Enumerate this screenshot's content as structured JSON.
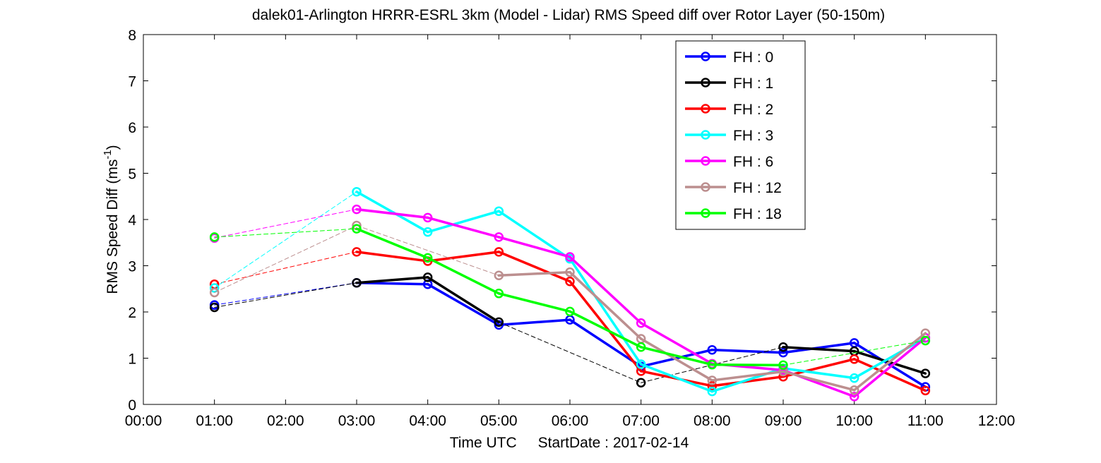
{
  "chart_data": {
    "type": "line",
    "title": "dalek01-Arlington HRRR-ESRL 3km (Model - Lidar) RMS Speed diff over Rotor Layer (50-150m)",
    "xlabel_text": "Time UTC",
    "xlabel_date": "StartDate : 2017-02-14",
    "ylabel_main": "RMS Speed Diff (ms",
    "ylabel_sup": "-1",
    "ylabel_close": ")",
    "xlim": [
      0,
      12
    ],
    "ylim": [
      0,
      8
    ],
    "x_ticks": [
      "00:00",
      "01:00",
      "02:00",
      "03:00",
      "04:00",
      "05:00",
      "06:00",
      "07:00",
      "08:00",
      "09:00",
      "10:00",
      "11:00",
      "12:00"
    ],
    "y_ticks": [
      "0",
      "1",
      "2",
      "3",
      "4",
      "5",
      "6",
      "7",
      "8"
    ],
    "grid": false,
    "legend_position": "top-right",
    "series": [
      {
        "name": "FH : 0",
        "color": "#0000ff",
        "points": [
          [
            1,
            2.15
          ],
          [
            3,
            2.63
          ],
          [
            4,
            2.6
          ],
          [
            5,
            1.72
          ],
          [
            6,
            1.83
          ],
          [
            7,
            0.82
          ],
          [
            8,
            1.18
          ],
          [
            9,
            1.12
          ],
          [
            10,
            1.33
          ],
          [
            11,
            0.38
          ]
        ]
      },
      {
        "name": "FH : 1",
        "color": "#000000",
        "points": [
          [
            1,
            2.1
          ],
          [
            3,
            2.63
          ],
          [
            4,
            2.75
          ],
          [
            5,
            1.78
          ],
          [
            7,
            0.47
          ],
          [
            9,
            1.24
          ],
          [
            10,
            1.15
          ],
          [
            11,
            0.67
          ]
        ]
      },
      {
        "name": "FH : 2",
        "color": "#ff0000",
        "points": [
          [
            1,
            2.6
          ],
          [
            3,
            3.3
          ],
          [
            4,
            3.1
          ],
          [
            5,
            3.3
          ],
          [
            6,
            2.66
          ],
          [
            7,
            0.72
          ],
          [
            8,
            0.4
          ],
          [
            9,
            0.6
          ],
          [
            10,
            0.98
          ],
          [
            11,
            0.3
          ]
        ]
      },
      {
        "name": "FH : 3",
        "color": "#00ffff",
        "points": [
          [
            1,
            2.52
          ],
          [
            3,
            4.6
          ],
          [
            4,
            3.73
          ],
          [
            5,
            4.18
          ],
          [
            6,
            3.15
          ],
          [
            7,
            0.87
          ],
          [
            8,
            0.28
          ],
          [
            9,
            0.78
          ],
          [
            10,
            0.57
          ],
          [
            11,
            1.44
          ]
        ]
      },
      {
        "name": "FH : 6",
        "color": "#ff00ff",
        "points": [
          [
            1,
            3.6
          ],
          [
            3,
            4.22
          ],
          [
            4,
            4.04
          ],
          [
            5,
            3.62
          ],
          [
            6,
            3.19
          ],
          [
            7,
            1.76
          ],
          [
            8,
            0.88
          ],
          [
            9,
            0.74
          ],
          [
            10,
            0.17
          ],
          [
            11,
            1.44
          ]
        ]
      },
      {
        "name": "FH : 12",
        "color": "#bc8f8f",
        "points": [
          [
            1,
            2.42
          ],
          [
            3,
            3.87
          ],
          [
            5,
            2.79
          ],
          [
            6,
            2.86
          ],
          [
            7,
            1.42
          ],
          [
            8,
            0.52
          ],
          [
            9,
            0.71
          ],
          [
            10,
            0.31
          ],
          [
            11,
            1.54
          ]
        ]
      },
      {
        "name": "FH : 18",
        "color": "#00ff00",
        "points": [
          [
            1,
            3.62
          ],
          [
            3,
            3.8
          ],
          [
            4,
            3.17
          ],
          [
            5,
            2.4
          ],
          [
            6,
            2.01
          ],
          [
            7,
            1.24
          ],
          [
            8,
            0.86
          ],
          [
            9,
            0.85
          ],
          [
            11,
            1.38
          ]
        ]
      }
    ]
  }
}
